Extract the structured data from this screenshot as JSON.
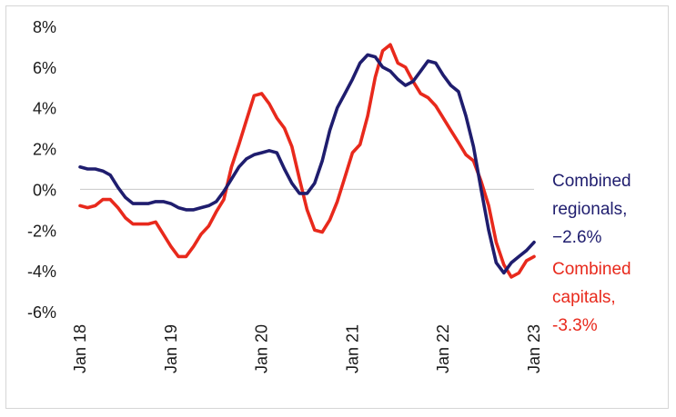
{
  "chart_data": {
    "type": "line",
    "title": "",
    "xlabel": "",
    "ylabel": "",
    "ylim": [
      -6,
      8
    ],
    "y_ticks": [
      8,
      6,
      4,
      2,
      0,
      -2,
      -4,
      -6
    ],
    "y_tick_labels": [
      "8%",
      "6%",
      "4%",
      "2%",
      "0%",
      "-2%",
      "-4%",
      "-6%"
    ],
    "x_ticks": [
      2018,
      2019,
      2020,
      2021,
      2022,
      2023
    ],
    "x_tick_labels": [
      "Jan 18",
      "Jan 19",
      "Jan 20",
      "Jan 21",
      "Jan 22",
      "Jan 23"
    ],
    "grid": "zero-line only",
    "legend_placement": "right, inline labels",
    "series": [
      {
        "key": "regionals",
        "label_lines": [
          "Combined",
          "regionals,",
          "−2.6%"
        ],
        "color": "#1f1d6e",
        "x": [
          2018.0,
          2018.083,
          2018.167,
          2018.25,
          2018.333,
          2018.417,
          2018.5,
          2018.583,
          2018.667,
          2018.75,
          2018.833,
          2018.917,
          2019.0,
          2019.083,
          2019.167,
          2019.25,
          2019.333,
          2019.417,
          2019.5,
          2019.583,
          2019.667,
          2019.75,
          2019.833,
          2019.917,
          2020.0,
          2020.083,
          2020.167,
          2020.25,
          2020.333,
          2020.417,
          2020.5,
          2020.583,
          2020.667,
          2020.75,
          2020.833,
          2020.917,
          2021.0,
          2021.083,
          2021.167,
          2021.25,
          2021.333,
          2021.417,
          2021.5,
          2021.583,
          2021.667,
          2021.75,
          2021.833,
          2021.917,
          2022.0,
          2022.083,
          2022.167,
          2022.25,
          2022.333,
          2022.417,
          2022.5,
          2022.583,
          2022.667,
          2022.75,
          2022.833,
          2022.917,
          2023.0
        ],
        "y": [
          1.1,
          1.0,
          1.0,
          0.9,
          0.7,
          0.1,
          -0.4,
          -0.7,
          -0.7,
          -0.7,
          -0.6,
          -0.6,
          -0.7,
          -0.9,
          -1.0,
          -1.0,
          -0.9,
          -0.8,
          -0.6,
          -0.1,
          0.5,
          1.1,
          1.5,
          1.7,
          1.8,
          1.9,
          1.8,
          1.0,
          0.3,
          -0.2,
          -0.2,
          0.3,
          1.4,
          2.9,
          4.0,
          4.7,
          5.4,
          6.2,
          6.6,
          6.5,
          6.0,
          5.8,
          5.4,
          5.1,
          5.3,
          5.8,
          6.3,
          6.2,
          5.6,
          5.1,
          4.8,
          3.6,
          2.1,
          0.0,
          -2.0,
          -3.6,
          -4.1,
          -3.6,
          -3.3,
          -3.0,
          -2.6
        ]
      },
      {
        "key": "capitals",
        "label_lines": [
          "Combined",
          "capitals,",
          "-3.3%"
        ],
        "color": "#e8291c",
        "x": [
          2018.0,
          2018.083,
          2018.167,
          2018.25,
          2018.333,
          2018.417,
          2018.5,
          2018.583,
          2018.667,
          2018.75,
          2018.833,
          2018.917,
          2019.0,
          2019.083,
          2019.167,
          2019.25,
          2019.333,
          2019.417,
          2019.5,
          2019.583,
          2019.667,
          2019.75,
          2019.833,
          2019.917,
          2020.0,
          2020.083,
          2020.167,
          2020.25,
          2020.333,
          2020.417,
          2020.5,
          2020.583,
          2020.667,
          2020.75,
          2020.833,
          2020.917,
          2021.0,
          2021.083,
          2021.167,
          2021.25,
          2021.333,
          2021.417,
          2021.5,
          2021.583,
          2021.667,
          2021.75,
          2021.833,
          2021.917,
          2022.0,
          2022.083,
          2022.167,
          2022.25,
          2022.333,
          2022.417,
          2022.5,
          2022.583,
          2022.667,
          2022.75,
          2022.833,
          2022.917,
          2023.0
        ],
        "y": [
          -0.8,
          -0.9,
          -0.8,
          -0.5,
          -0.5,
          -0.9,
          -1.4,
          -1.7,
          -1.7,
          -1.7,
          -1.6,
          -2.2,
          -2.8,
          -3.3,
          -3.3,
          -2.8,
          -2.2,
          -1.8,
          -1.1,
          -0.5,
          1.1,
          2.2,
          3.4,
          4.6,
          4.7,
          4.2,
          3.5,
          3.0,
          2.1,
          0.5,
          -1.0,
          -2.0,
          -2.1,
          -1.5,
          -0.6,
          0.6,
          1.8,
          2.2,
          3.6,
          5.5,
          6.8,
          7.1,
          6.2,
          6.0,
          5.3,
          4.7,
          4.5,
          4.1,
          3.5,
          2.9,
          2.3,
          1.7,
          1.4,
          0.4,
          -0.8,
          -2.6,
          -3.7,
          -4.3,
          -4.1,
          -3.5,
          -3.3
        ]
      }
    ]
  }
}
